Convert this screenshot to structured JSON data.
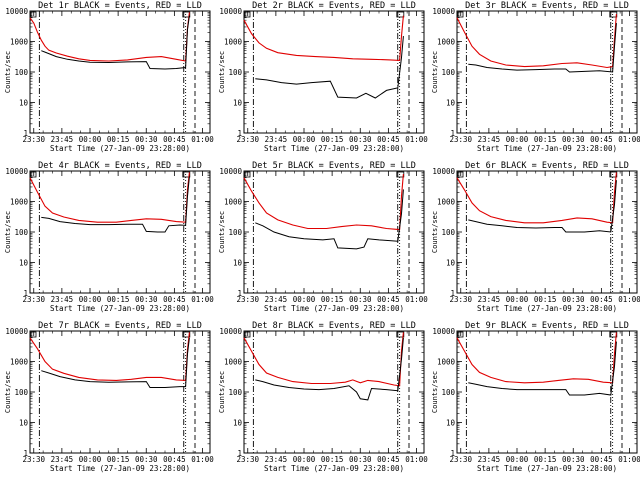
{
  "page": {
    "background": "#ffffff"
  },
  "colors": {
    "events": "#000000",
    "lld": "#e00000",
    "axis": "#000000"
  },
  "chart_data": {
    "type": "line",
    "x_tick_labels": [
      "23:30",
      "23:45",
      "00:00",
      "00:15",
      "00:30",
      "00:45",
      "01:00"
    ],
    "x_tick_minutes": [
      0,
      15,
      30,
      45,
      60,
      75,
      90
    ],
    "y_tick_labels": [
      "1",
      "10",
      "100",
      "1000",
      "10000"
    ],
    "y_scale": "log",
    "ylim": [
      1,
      10000
    ],
    "xlabel": "Start Time (27-Jan-09 23:28:00)",
    "ylabel": "Counts/sec",
    "panels": [
      {
        "title": "Det 1r BLACK = Events, RED = LLD",
        "events": [
          [
            4,
            500
          ],
          [
            6,
            450
          ],
          [
            8,
            400
          ],
          [
            12,
            320
          ],
          [
            18,
            260
          ],
          [
            24,
            230
          ],
          [
            30,
            210
          ],
          [
            40,
            205
          ],
          [
            50,
            215
          ],
          [
            60,
            220
          ],
          [
            62,
            130
          ],
          [
            70,
            125
          ],
          [
            76,
            130
          ],
          [
            81,
            140
          ],
          [
            82,
            2500
          ],
          [
            83,
            7000
          ]
        ],
        "lld": [
          [
            -2,
            6000
          ],
          [
            0,
            4000
          ],
          [
            2,
            2000
          ],
          [
            4,
            1100
          ],
          [
            6,
            700
          ],
          [
            8,
            520
          ],
          [
            12,
            420
          ],
          [
            18,
            330
          ],
          [
            24,
            270
          ],
          [
            30,
            240
          ],
          [
            40,
            230
          ],
          [
            50,
            250
          ],
          [
            60,
            300
          ],
          [
            68,
            320
          ],
          [
            76,
            260
          ],
          [
            81,
            230
          ],
          [
            82,
            2800
          ],
          [
            83,
            9000
          ]
        ]
      },
      {
        "title": "Det 2r BLACK = Events, RED = LLD",
        "events": [
          [
            4,
            60
          ],
          [
            10,
            55
          ],
          [
            18,
            45
          ],
          [
            26,
            40
          ],
          [
            34,
            45
          ],
          [
            44,
            50
          ],
          [
            48,
            15
          ],
          [
            58,
            14
          ],
          [
            63,
            20
          ],
          [
            68,
            14
          ],
          [
            74,
            25
          ],
          [
            80,
            30
          ],
          [
            82,
            300
          ],
          [
            83,
            1500
          ]
        ],
        "lld": [
          [
            -2,
            5000
          ],
          [
            2,
            1800
          ],
          [
            6,
            900
          ],
          [
            10,
            600
          ],
          [
            16,
            430
          ],
          [
            26,
            350
          ],
          [
            36,
            320
          ],
          [
            46,
            300
          ],
          [
            56,
            270
          ],
          [
            66,
            260
          ],
          [
            76,
            250
          ],
          [
            81,
            240
          ],
          [
            82,
            1500
          ],
          [
            83,
            7000
          ]
        ]
      },
      {
        "title": "Det 3r BLACK = Events, RED = LLD",
        "events": [
          [
            4,
            180
          ],
          [
            8,
            170
          ],
          [
            14,
            140
          ],
          [
            22,
            125
          ],
          [
            30,
            115
          ],
          [
            40,
            120
          ],
          [
            50,
            125
          ],
          [
            56,
            125
          ],
          [
            58,
            100
          ],
          [
            66,
            105
          ],
          [
            74,
            110
          ],
          [
            81,
            100
          ],
          [
            82,
            700
          ],
          [
            83,
            4000
          ]
        ],
        "lld": [
          [
            -2,
            6000
          ],
          [
            2,
            2000
          ],
          [
            6,
            700
          ],
          [
            10,
            380
          ],
          [
            16,
            230
          ],
          [
            24,
            170
          ],
          [
            34,
            150
          ],
          [
            44,
            160
          ],
          [
            54,
            190
          ],
          [
            62,
            200
          ],
          [
            70,
            170
          ],
          [
            78,
            140
          ],
          [
            81,
            150
          ],
          [
            82,
            1200
          ],
          [
            83,
            8000
          ]
        ]
      },
      {
        "title": "Det 4r BLACK = Events, RED = LLD",
        "events": [
          [
            4,
            300
          ],
          [
            8,
            280
          ],
          [
            14,
            220
          ],
          [
            22,
            190
          ],
          [
            30,
            175
          ],
          [
            40,
            175
          ],
          [
            50,
            180
          ],
          [
            58,
            180
          ],
          [
            60,
            105
          ],
          [
            66,
            100
          ],
          [
            70,
            100
          ],
          [
            72,
            160
          ],
          [
            78,
            170
          ],
          [
            81,
            165
          ],
          [
            82,
            1500
          ],
          [
            83,
            6500
          ]
        ],
        "lld": [
          [
            -2,
            6000
          ],
          [
            2,
            2000
          ],
          [
            6,
            700
          ],
          [
            10,
            420
          ],
          [
            16,
            310
          ],
          [
            24,
            240
          ],
          [
            34,
            210
          ],
          [
            44,
            210
          ],
          [
            52,
            240
          ],
          [
            60,
            270
          ],
          [
            68,
            260
          ],
          [
            76,
            220
          ],
          [
            81,
            210
          ],
          [
            82,
            2500
          ],
          [
            83,
            9000
          ]
        ]
      },
      {
        "title": "Det 5r BLACK = Events, RED = LLD",
        "events": [
          [
            4,
            200
          ],
          [
            8,
            160
          ],
          [
            14,
            100
          ],
          [
            22,
            70
          ],
          [
            30,
            60
          ],
          [
            40,
            55
          ],
          [
            46,
            60
          ],
          [
            48,
            30
          ],
          [
            58,
            28
          ],
          [
            62,
            32
          ],
          [
            64,
            60
          ],
          [
            70,
            55
          ],
          [
            80,
            50
          ],
          [
            82,
            400
          ],
          [
            83,
            2500
          ]
        ],
        "lld": [
          [
            -2,
            6000
          ],
          [
            2,
            2200
          ],
          [
            6,
            900
          ],
          [
            10,
            420
          ],
          [
            16,
            250
          ],
          [
            24,
            170
          ],
          [
            32,
            130
          ],
          [
            42,
            130
          ],
          [
            50,
            150
          ],
          [
            58,
            170
          ],
          [
            66,
            160
          ],
          [
            74,
            130
          ],
          [
            81,
            120
          ],
          [
            82,
            1500
          ],
          [
            83,
            8000
          ]
        ]
      },
      {
        "title": "Det 6r BLACK = Events, RED = LLD",
        "events": [
          [
            4,
            250
          ],
          [
            8,
            220
          ],
          [
            14,
            180
          ],
          [
            22,
            160
          ],
          [
            30,
            140
          ],
          [
            40,
            135
          ],
          [
            50,
            140
          ],
          [
            54,
            140
          ],
          [
            56,
            100
          ],
          [
            66,
            100
          ],
          [
            74,
            110
          ],
          [
            80,
            100
          ],
          [
            82,
            800
          ],
          [
            83,
            5000
          ]
        ],
        "lld": [
          [
            -2,
            6000
          ],
          [
            2,
            2400
          ],
          [
            6,
            900
          ],
          [
            10,
            500
          ],
          [
            16,
            320
          ],
          [
            24,
            240
          ],
          [
            34,
            200
          ],
          [
            44,
            200
          ],
          [
            54,
            240
          ],
          [
            62,
            290
          ],
          [
            70,
            270
          ],
          [
            78,
            210
          ],
          [
            81,
            200
          ],
          [
            82,
            2000
          ],
          [
            83,
            9000
          ]
        ]
      },
      {
        "title": "Det 7r BLACK = Events, RED = LLD",
        "events": [
          [
            4,
            500
          ],
          [
            8,
            420
          ],
          [
            14,
            320
          ],
          [
            22,
            250
          ],
          [
            30,
            220
          ],
          [
            40,
            210
          ],
          [
            50,
            215
          ],
          [
            60,
            220
          ],
          [
            62,
            140
          ],
          [
            70,
            140
          ],
          [
            78,
            150
          ],
          [
            81,
            150
          ],
          [
            82,
            1800
          ],
          [
            83,
            6000
          ]
        ],
        "lld": [
          [
            -2,
            6000
          ],
          [
            2,
            2600
          ],
          [
            6,
            1000
          ],
          [
            10,
            560
          ],
          [
            16,
            410
          ],
          [
            24,
            300
          ],
          [
            34,
            250
          ],
          [
            44,
            240
          ],
          [
            52,
            260
          ],
          [
            60,
            300
          ],
          [
            68,
            300
          ],
          [
            76,
            250
          ],
          [
            81,
            240
          ],
          [
            82,
            2500
          ],
          [
            83,
            9000
          ]
        ]
      },
      {
        "title": "Det 8r BLACK = Events, RED = LLD",
        "events": [
          [
            4,
            250
          ],
          [
            8,
            220
          ],
          [
            14,
            170
          ],
          [
            22,
            140
          ],
          [
            30,
            125
          ],
          [
            38,
            120
          ],
          [
            46,
            130
          ],
          [
            54,
            160
          ],
          [
            58,
            100
          ],
          [
            60,
            60
          ],
          [
            64,
            55
          ],
          [
            66,
            130
          ],
          [
            74,
            120
          ],
          [
            80,
            110
          ],
          [
            82,
            1200
          ],
          [
            83,
            6000
          ]
        ],
        "lld": [
          [
            -2,
            6000
          ],
          [
            2,
            2200
          ],
          [
            6,
            800
          ],
          [
            10,
            420
          ],
          [
            16,
            300
          ],
          [
            24,
            220
          ],
          [
            34,
            190
          ],
          [
            44,
            190
          ],
          [
            52,
            210
          ],
          [
            56,
            250
          ],
          [
            60,
            200
          ],
          [
            64,
            240
          ],
          [
            70,
            220
          ],
          [
            78,
            170
          ],
          [
            81,
            160
          ],
          [
            82,
            2200
          ],
          [
            83,
            9000
          ]
        ]
      },
      {
        "title": "Det 9r BLACK = Events, RED = LLD",
        "events": [
          [
            4,
            200
          ],
          [
            8,
            180
          ],
          [
            14,
            150
          ],
          [
            22,
            130
          ],
          [
            30,
            120
          ],
          [
            40,
            120
          ],
          [
            50,
            120
          ],
          [
            56,
            120
          ],
          [
            58,
            80
          ],
          [
            66,
            80
          ],
          [
            74,
            90
          ],
          [
            80,
            80
          ],
          [
            82,
            700
          ],
          [
            83,
            4500
          ]
        ],
        "lld": [
          [
            -2,
            6000
          ],
          [
            2,
            2200
          ],
          [
            6,
            800
          ],
          [
            10,
            440
          ],
          [
            16,
            300
          ],
          [
            24,
            220
          ],
          [
            34,
            200
          ],
          [
            44,
            210
          ],
          [
            52,
            240
          ],
          [
            60,
            270
          ],
          [
            68,
            260
          ],
          [
            76,
            210
          ],
          [
            81,
            200
          ],
          [
            82,
            1800
          ],
          [
            83,
            9000
          ]
        ]
      }
    ],
    "vertical_markers": [
      {
        "minute": 3,
        "style": "dash-dot"
      },
      {
        "minute": 80,
        "style": "dash-dot"
      },
      {
        "minute": 81,
        "style": "dotted"
      },
      {
        "minute": 86,
        "style": "dashed"
      }
    ]
  }
}
